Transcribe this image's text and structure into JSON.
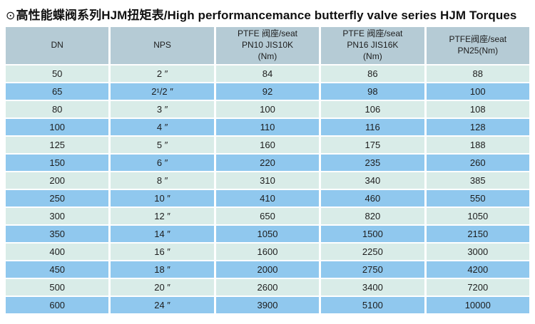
{
  "header": {
    "bullet": "⊙",
    "title": "高性能蝶阀系列HJM扭矩表/High performancemance butterfly valve series HJM Torques"
  },
  "colors": {
    "header_bg": "#b5cbd5",
    "row_light": "#d9ece8",
    "row_blue": "#90c8ee",
    "text": "#1d1d1d",
    "page_bg": "#ffffff"
  },
  "table": {
    "columns": [
      {
        "id": "dn",
        "lines": [
          "DN"
        ]
      },
      {
        "id": "nps",
        "lines": [
          "NPS"
        ]
      },
      {
        "id": "pn10",
        "lines": [
          "PTFE 阀座/seat",
          "PN10 JIS10K",
          "(Nm)"
        ]
      },
      {
        "id": "pn16",
        "lines": [
          "PTFE 阀座/seat",
          "PN16 JIS16K",
          "(Nm)"
        ]
      },
      {
        "id": "pn25",
        "lines": [
          "PTFE阀座/seat",
          "PN25(Nm)"
        ]
      }
    ],
    "rows": [
      [
        "50",
        "2 ″",
        "84",
        "86",
        "88"
      ],
      [
        "65",
        "2¹/2 ″",
        "92",
        "98",
        "100"
      ],
      [
        "80",
        "3 ″",
        "100",
        "106",
        "108"
      ],
      [
        "100",
        "4 ″",
        "110",
        "116",
        "128"
      ],
      [
        "125",
        "5 ″",
        "160",
        "175",
        "188"
      ],
      [
        "150",
        "6 ″",
        "220",
        "235",
        "260"
      ],
      [
        "200",
        "8 ″",
        "310",
        "340",
        "385"
      ],
      [
        "250",
        "10 ″",
        "410",
        "460",
        "550"
      ],
      [
        "300",
        "12 ″",
        "650",
        "820",
        "1050"
      ],
      [
        "350",
        "14 ″",
        "1050",
        "1500",
        "2150"
      ],
      [
        "400",
        "16 ″",
        "1600",
        "2250",
        "3000"
      ],
      [
        "450",
        "18 ″",
        "2000",
        "2750",
        "4200"
      ],
      [
        "500",
        "20 ″",
        "2600",
        "3400",
        "7200"
      ],
      [
        "600",
        "24 ″",
        "3900",
        "5100",
        "10000"
      ]
    ]
  }
}
